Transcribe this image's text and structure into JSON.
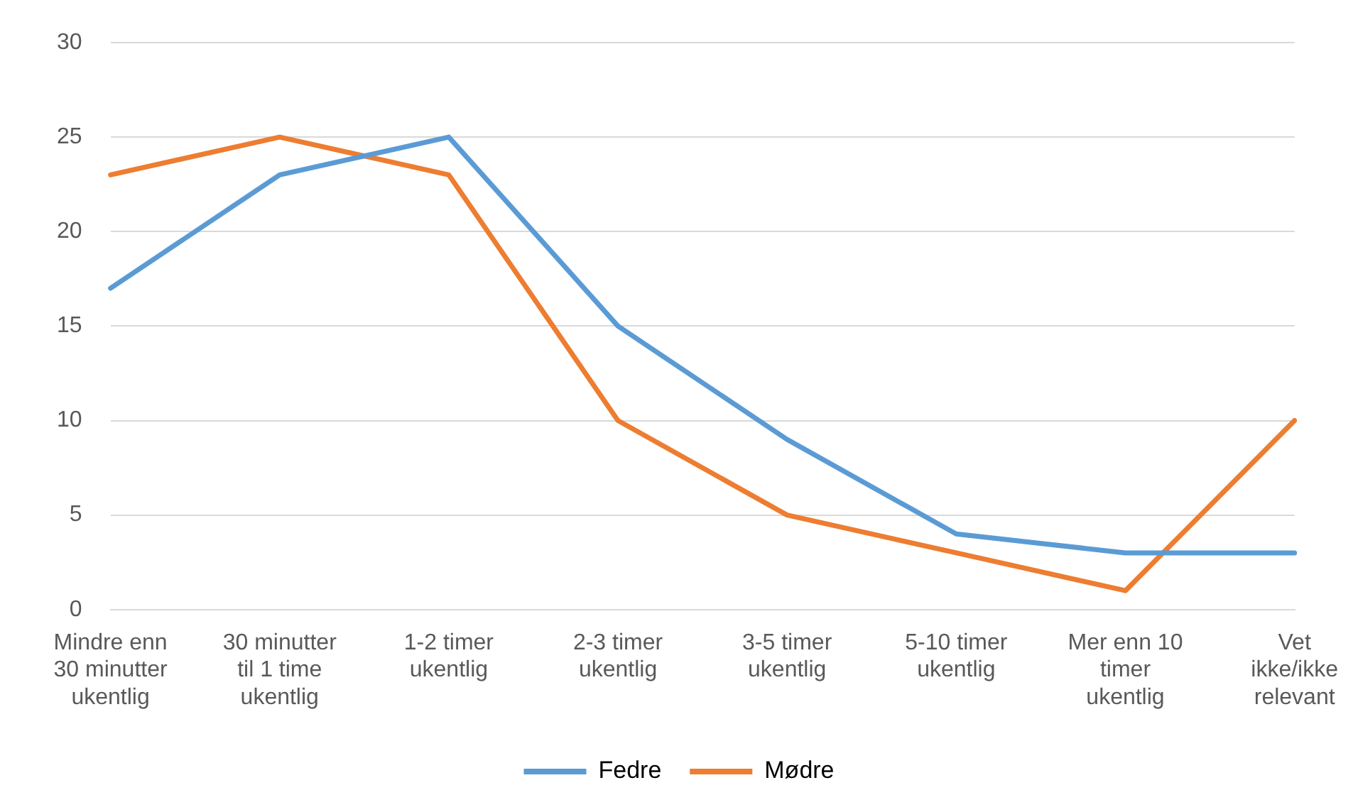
{
  "chart_data": {
    "type": "line",
    "categories": [
      "Mindre enn 30 minutter ukentlig",
      "30 minutter til 1 time ukentlig",
      "1-2 timer ukentlig",
      "2-3 timer ukentlig",
      "3-5 timer ukentlig",
      "5-10 timer ukentlig",
      "Mer enn 10 timer ukentlig",
      "Vet ikke/ikke relevant"
    ],
    "series": [
      {
        "name": "Fedre",
        "color": "#5b9bd5",
        "values": [
          17,
          23,
          25,
          15,
          9,
          4,
          3,
          3
        ]
      },
      {
        "name": "Mødre",
        "color": "#ed7d31",
        "values": [
          23,
          25,
          23,
          10,
          5,
          3,
          1,
          10
        ]
      }
    ],
    "ylim": [
      0,
      30
    ],
    "yticks": [
      0,
      5,
      10,
      15,
      20,
      25,
      30
    ],
    "grid": "y",
    "legend": "bottom",
    "marker": "none",
    "line_style": "solid"
  }
}
